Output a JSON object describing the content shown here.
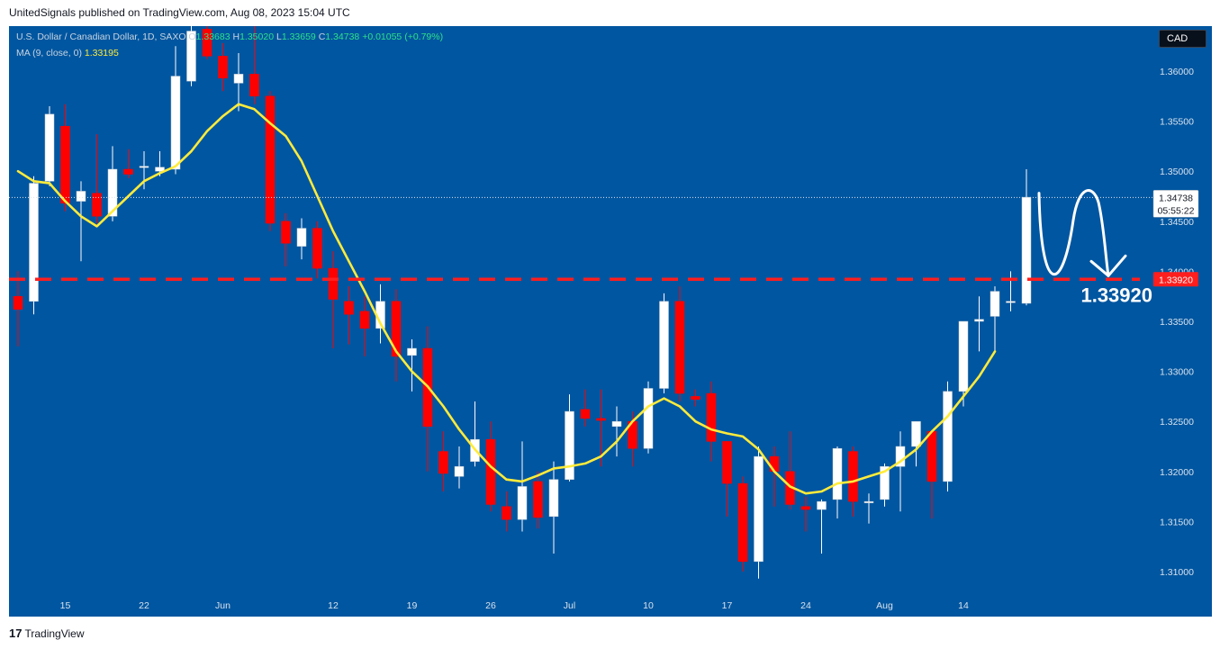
{
  "header": {
    "text": "UnitedSignals published on TradingView.com, Aug 08, 2023 15:04 UTC"
  },
  "legend": {
    "symbol": "U.S. Dollar / Canadian Dollar, 1D, SAXO",
    "o_label": "O",
    "o": "1.33683",
    "h_label": "H",
    "h": "1.35020",
    "l_label": "L",
    "l": "1.33659",
    "c_label": "C",
    "c": "1.34738",
    "change": "+0.01055 (+0.79%)",
    "ma_label": "MA (9, close, 0)",
    "ma_value": "1.33195"
  },
  "currency_button": "CAD",
  "footer": {
    "brand": "TradingView",
    "mark": "17"
  },
  "colors": {
    "background": "#0056a0",
    "bull": "#ffffff",
    "bear": "#ff0000",
    "ma": "#ffeb3b",
    "level": "#ff1e1e",
    "price_label_bg": "#ffffff"
  },
  "chart_data": {
    "type": "candlestick",
    "y_range": [
      1.3055,
      1.3645
    ],
    "y_ticks": [
      "1.31000",
      "1.31500",
      "1.32000",
      "1.32500",
      "1.33000",
      "1.33500",
      "1.34000",
      "1.34500",
      "1.35000",
      "1.35500",
      "1.36000"
    ],
    "x_ticks": [
      {
        "label": "15",
        "index": 3
      },
      {
        "label": "22",
        "index": 8
      },
      {
        "label": "Jun",
        "index": 13
      },
      {
        "label": "12",
        "index": 20
      },
      {
        "label": "19",
        "index": 25
      },
      {
        "label": "26",
        "index": 30
      },
      {
        "label": "Jul",
        "index": 35
      },
      {
        "label": "10",
        "index": 40
      },
      {
        "label": "17",
        "index": 45
      },
      {
        "label": "24",
        "index": 50
      },
      {
        "label": "Aug",
        "index": 55
      },
      {
        "label": "14",
        "index": 60
      }
    ],
    "candles": [
      {
        "o": 1.3375,
        "h": 1.34,
        "l": 1.3325,
        "c": 1.3362
      },
      {
        "o": 1.337,
        "h": 1.3495,
        "l": 1.3357,
        "c": 1.3488
      },
      {
        "o": 1.349,
        "h": 1.3565,
        "l": 1.3485,
        "c": 1.3557
      },
      {
        "o": 1.3545,
        "h": 1.3567,
        "l": 1.346,
        "c": 1.3468
      },
      {
        "o": 1.347,
        "h": 1.349,
        "l": 1.341,
        "c": 1.348
      },
      {
        "o": 1.3478,
        "h": 1.3537,
        "l": 1.3448,
        "c": 1.3455
      },
      {
        "o": 1.3455,
        "h": 1.3525,
        "l": 1.345,
        "c": 1.3502
      },
      {
        "o": 1.3502,
        "h": 1.3522,
        "l": 1.3493,
        "c": 1.3497
      },
      {
        "o": 1.3505,
        "h": 1.352,
        "l": 1.3482,
        "c": 1.3505
      },
      {
        "o": 1.35,
        "h": 1.352,
        "l": 1.3495,
        "c": 1.3504
      },
      {
        "o": 1.3502,
        "h": 1.3625,
        "l": 1.3497,
        "c": 1.3595
      },
      {
        "o": 1.359,
        "h": 1.3663,
        "l": 1.3585,
        "c": 1.364
      },
      {
        "o": 1.3642,
        "h": 1.3665,
        "l": 1.3612,
        "c": 1.3615
      },
      {
        "o": 1.3615,
        "h": 1.3628,
        "l": 1.358,
        "c": 1.3593
      },
      {
        "o": 1.3588,
        "h": 1.3618,
        "l": 1.356,
        "c": 1.3597
      },
      {
        "o": 1.3597,
        "h": 1.3665,
        "l": 1.3567,
        "c": 1.3575
      },
      {
        "o": 1.3575,
        "h": 1.358,
        "l": 1.344,
        "c": 1.3448
      },
      {
        "o": 1.345,
        "h": 1.3458,
        "l": 1.3405,
        "c": 1.3428
      },
      {
        "o": 1.3425,
        "h": 1.3453,
        "l": 1.3412,
        "c": 1.3443
      },
      {
        "o": 1.3443,
        "h": 1.345,
        "l": 1.3393,
        "c": 1.3403
      },
      {
        "o": 1.3403,
        "h": 1.342,
        "l": 1.3323,
        "c": 1.3372
      },
      {
        "o": 1.337,
        "h": 1.3385,
        "l": 1.3327,
        "c": 1.3357
      },
      {
        "o": 1.336,
        "h": 1.3375,
        "l": 1.3315,
        "c": 1.3343
      },
      {
        "o": 1.3343,
        "h": 1.3387,
        "l": 1.3328,
        "c": 1.337
      },
      {
        "o": 1.337,
        "h": 1.3382,
        "l": 1.329,
        "c": 1.3315
      },
      {
        "o": 1.3316,
        "h": 1.3332,
        "l": 1.328,
        "c": 1.3323
      },
      {
        "o": 1.3323,
        "h": 1.3345,
        "l": 1.32,
        "c": 1.3245
      },
      {
        "o": 1.322,
        "h": 1.324,
        "l": 1.318,
        "c": 1.3198
      },
      {
        "o": 1.3195,
        "h": 1.3225,
        "l": 1.3183,
        "c": 1.3205
      },
      {
        "o": 1.321,
        "h": 1.327,
        "l": 1.3205,
        "c": 1.3232
      },
      {
        "o": 1.3232,
        "h": 1.325,
        "l": 1.316,
        "c": 1.3167
      },
      {
        "o": 1.3165,
        "h": 1.318,
        "l": 1.314,
        "c": 1.3152
      },
      {
        "o": 1.3152,
        "h": 1.323,
        "l": 1.314,
        "c": 1.3185
      },
      {
        "o": 1.319,
        "h": 1.32,
        "l": 1.3143,
        "c": 1.3154
      },
      {
        "o": 1.3155,
        "h": 1.321,
        "l": 1.3118,
        "c": 1.3192
      },
      {
        "o": 1.3192,
        "h": 1.3277,
        "l": 1.319,
        "c": 1.326
      },
      {
        "o": 1.3262,
        "h": 1.3282,
        "l": 1.3245,
        "c": 1.3253
      },
      {
        "o": 1.3253,
        "h": 1.3282,
        "l": 1.3205,
        "c": 1.3251
      },
      {
        "o": 1.3245,
        "h": 1.3265,
        "l": 1.3215,
        "c": 1.325
      },
      {
        "o": 1.325,
        "h": 1.326,
        "l": 1.3205,
        "c": 1.3223
      },
      {
        "o": 1.3223,
        "h": 1.329,
        "l": 1.3218,
        "c": 1.3283
      },
      {
        "o": 1.3283,
        "h": 1.3378,
        "l": 1.3278,
        "c": 1.337
      },
      {
        "o": 1.337,
        "h": 1.3385,
        "l": 1.327,
        "c": 1.3278
      },
      {
        "o": 1.3275,
        "h": 1.3282,
        "l": 1.3265,
        "c": 1.3272
      },
      {
        "o": 1.3278,
        "h": 1.329,
        "l": 1.321,
        "c": 1.323
      },
      {
        "o": 1.323,
        "h": 1.323,
        "l": 1.3155,
        "c": 1.3188
      },
      {
        "o": 1.3188,
        "h": 1.3195,
        "l": 1.31,
        "c": 1.311
      },
      {
        "o": 1.311,
        "h": 1.3225,
        "l": 1.3093,
        "c": 1.3215
      },
      {
        "o": 1.3215,
        "h": 1.3225,
        "l": 1.3165,
        "c": 1.32
      },
      {
        "o": 1.32,
        "h": 1.324,
        "l": 1.3162,
        "c": 1.3167
      },
      {
        "o": 1.3165,
        "h": 1.3175,
        "l": 1.314,
        "c": 1.3162
      },
      {
        "o": 1.3162,
        "h": 1.3172,
        "l": 1.3118,
        "c": 1.317
      },
      {
        "o": 1.3172,
        "h": 1.3225,
        "l": 1.3153,
        "c": 1.3223
      },
      {
        "o": 1.322,
        "h": 1.3225,
        "l": 1.3155,
        "c": 1.317
      },
      {
        "o": 1.317,
        "h": 1.3178,
        "l": 1.3148,
        "c": 1.317
      },
      {
        "o": 1.3172,
        "h": 1.3208,
        "l": 1.3165,
        "c": 1.3205
      }
    ],
    "candles_extra": [
      {
        "o": 1.3205,
        "h": 1.324,
        "l": 1.316,
        "c": 1.3225
      },
      {
        "o": 1.3225,
        "h": 1.325,
        "l": 1.3205,
        "c": 1.325
      },
      {
        "o": 1.324,
        "h": 1.324,
        "l": 1.3153,
        "c": 1.319
      },
      {
        "o": 1.319,
        "h": 1.329,
        "l": 1.318,
        "c": 1.328
      },
      {
        "o": 1.328,
        "h": 1.335,
        "l": 1.3265,
        "c": 1.335
      },
      {
        "o": 1.335,
        "h": 1.3375,
        "l": 1.332,
        "c": 1.3352
      },
      {
        "o": 1.3355,
        "h": 1.3385,
        "l": 1.332,
        "c": 1.338
      },
      {
        "o": 1.337,
        "h": 1.34,
        "l": 1.336,
        "c": 1.337
      },
      {
        "o": 1.3368,
        "h": 1.3502,
        "l": 1.3366,
        "c": 1.3474
      }
    ],
    "ma": {
      "label": "MA (9, close, 0)",
      "values": [
        1.35,
        1.349,
        1.3488,
        1.347,
        1.3455,
        1.3445,
        1.346,
        1.3475,
        1.349,
        1.3498,
        1.3505,
        1.352,
        1.354,
        1.3555,
        1.3567,
        1.3562,
        1.3548,
        1.3535,
        1.351,
        1.3475,
        1.344,
        1.341,
        1.338,
        1.3348,
        1.332,
        1.33,
        1.3285,
        1.3265,
        1.3242,
        1.3222,
        1.3205,
        1.3192,
        1.319,
        1.3196,
        1.3203,
        1.3205,
        1.3208,
        1.3215,
        1.323,
        1.325,
        1.3265,
        1.3273,
        1.3265,
        1.325,
        1.3242,
        1.3238,
        1.3235,
        1.3222,
        1.32,
        1.3185,
        1.3178,
        1.318,
        1.3188,
        1.319,
        1.3195,
        1.32,
        1.321,
        1.3222,
        1.324,
        1.3255,
        1.3275,
        1.3295,
        1.332
      ]
    },
    "level": {
      "value": 1.3392,
      "label": "1.33920",
      "annotation": "1.33920"
    },
    "last_price": {
      "value": 1.34738,
      "label": "1.34738",
      "countdown": "05:55:22"
    }
  }
}
